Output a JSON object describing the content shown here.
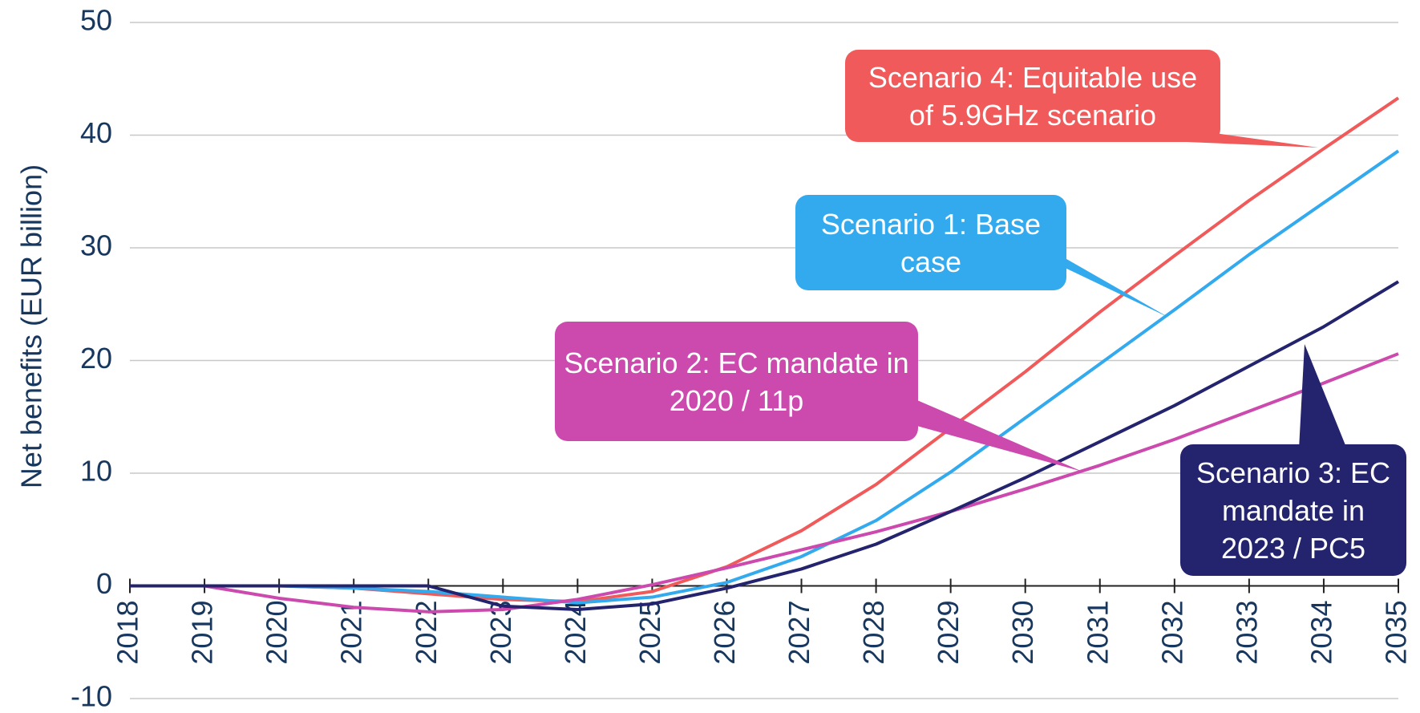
{
  "chart_data": {
    "type": "line",
    "y_label": "Net benefits (EUR billion)",
    "categories": [
      "2018",
      "2019",
      "2020",
      "2021",
      "2022",
      "2023",
      "2024",
      "2025",
      "2026",
      "2027",
      "2028",
      "2029",
      "2030",
      "2031",
      "2032",
      "2033",
      "2034",
      "2035"
    ],
    "series": [
      {
        "name": "Scenario 4: Equitable use of 5.9GHz scenario",
        "color": "#f05a5a",
        "values": [
          0,
          0,
          0,
          -0.2,
          -0.7,
          -1.2,
          -1.4,
          -0.5,
          1.7,
          4.9,
          9,
          14,
          19,
          24.3,
          29.3,
          34.2,
          38.8,
          43.3
        ]
      },
      {
        "name": "Scenario 1: Base case",
        "color": "#33aaee",
        "values": [
          0,
          0,
          0,
          -0.2,
          -0.5,
          -1,
          -1.5,
          -1,
          0.3,
          2.6,
          5.8,
          10.1,
          14.9,
          19.7,
          24.5,
          29.4,
          34,
          38.6
        ]
      },
      {
        "name": "Scenario 2: EC mandate in 2020 / 11p",
        "color": "#cc4aae",
        "values": [
          0,
          0,
          -1.1,
          -1.9,
          -2.3,
          -2.1,
          -1.2,
          0.1,
          1.6,
          3.2,
          4.8,
          6.6,
          8.6,
          10.7,
          13,
          15.5,
          18,
          20.6
        ]
      },
      {
        "name": "Scenario 3: EC mandate in 2023 / PC5",
        "color": "#23236e",
        "values": [
          0,
          0,
          0,
          0,
          0,
          -1.8,
          -2.1,
          -1.6,
          -0.2,
          1.5,
          3.7,
          6.6,
          9.6,
          12.8,
          16,
          19.5,
          23,
          27
        ]
      }
    ],
    "ylim": [
      -10,
      50
    ],
    "yticks": [
      -10,
      0,
      10,
      20,
      30,
      40,
      50
    ],
    "grid": true
  }
}
